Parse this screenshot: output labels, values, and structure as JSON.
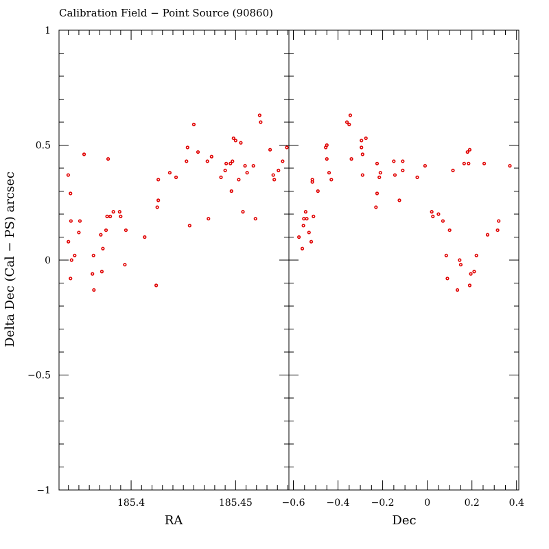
{
  "title": "Calibration Field − Point Source (90860)",
  "chart_data": [
    {
      "type": "scatter",
      "xlabel": "RA",
      "ylabel": "Delta Dec (Cal − PS) arcsec",
      "xlim": [
        185.3655,
        185.4755
      ],
      "ylim": [
        -1,
        1
      ],
      "xticks": [
        {
          "value": 185.4,
          "label": "185.4"
        },
        {
          "value": 185.45,
          "label": "185.45"
        }
      ],
      "yticks": [
        {
          "value": 1,
          "label": "1"
        },
        {
          "value": 0.5,
          "label": "0.5"
        },
        {
          "value": 0,
          "label": "0"
        },
        {
          "value": -0.5,
          "label": "−0.5"
        },
        {
          "value": -1,
          "label": "−1"
        }
      ],
      "points": [
        [
          185.3699,
          0.37
        ],
        [
          185.37,
          0.08
        ],
        [
          185.371,
          -0.08
        ],
        [
          185.371,
          0.29
        ],
        [
          185.3712,
          0.17
        ],
        [
          185.3715,
          0.0
        ],
        [
          185.373,
          0.02
        ],
        [
          185.375,
          0.12
        ],
        [
          185.3755,
          0.17
        ],
        [
          185.3775,
          0.46
        ],
        [
          185.3815,
          -0.06
        ],
        [
          185.382,
          0.02
        ],
        [
          185.3822,
          -0.13
        ],
        [
          185.3855,
          0.11
        ],
        [
          185.3865,
          0.05
        ],
        [
          185.386,
          -0.05
        ],
        [
          185.388,
          0.13
        ],
        [
          185.3885,
          0.19
        ],
        [
          185.389,
          0.44
        ],
        [
          185.39,
          0.19
        ],
        [
          185.3915,
          0.21
        ],
        [
          185.3945,
          0.21
        ],
        [
          185.395,
          0.19
        ],
        [
          185.397,
          -0.02
        ],
        [
          185.3975,
          0.13
        ],
        [
          185.4065,
          0.1
        ],
        [
          185.412,
          -0.11
        ],
        [
          185.4125,
          0.23
        ],
        [
          185.413,
          0.26
        ],
        [
          185.413,
          0.35
        ],
        [
          185.4185,
          0.38
        ],
        [
          185.4215,
          0.36
        ],
        [
          185.4265,
          0.43
        ],
        [
          185.427,
          0.49
        ],
        [
          185.428,
          0.15
        ],
        [
          185.43,
          0.59
        ],
        [
          185.432,
          0.47
        ],
        [
          185.4365,
          0.43
        ],
        [
          185.437,
          0.18
        ],
        [
          185.4385,
          0.45
        ],
        [
          185.443,
          0.36
        ],
        [
          185.445,
          0.39
        ],
        [
          185.4455,
          0.42
        ],
        [
          185.4475,
          0.42
        ],
        [
          185.448,
          0.3
        ],
        [
          185.4485,
          0.43
        ],
        [
          185.449,
          0.53
        ],
        [
          185.45,
          0.52
        ],
        [
          185.4515,
          0.35
        ],
        [
          185.4525,
          0.51
        ],
        [
          185.4545,
          0.41
        ],
        [
          185.4535,
          0.21
        ],
        [
          185.4555,
          0.38
        ],
        [
          185.4585,
          0.41
        ],
        [
          185.4595,
          0.18
        ],
        [
          185.4615,
          0.63
        ],
        [
          185.462,
          0.6
        ],
        [
          185.4665,
          0.48
        ],
        [
          185.468,
          0.37
        ],
        [
          185.4685,
          0.35
        ],
        [
          185.4705,
          0.39
        ],
        [
          185.4725,
          0.43
        ],
        [
          185.4745,
          0.49
        ]
      ]
    },
    {
      "type": "scatter",
      "xlabel": "Dec",
      "ylabel": "",
      "xlim": [
        -0.62,
        0.41
      ],
      "ylim": [
        -1,
        1
      ],
      "xticks": [
        {
          "value": -0.6,
          "label": "−0.6"
        },
        {
          "value": -0.4,
          "label": "−0.4"
        },
        {
          "value": -0.2,
          "label": "−0.2"
        },
        {
          "value": 0,
          "label": "0"
        },
        {
          "value": 0.2,
          "label": "0.2"
        },
        {
          "value": 0.4,
          "label": "0.4"
        }
      ],
      "points": [
        [
          -0.575,
          0.1
        ],
        [
          -0.56,
          0.05
        ],
        [
          -0.555,
          0.15
        ],
        [
          -0.553,
          0.18
        ],
        [
          -0.545,
          0.21
        ],
        [
          -0.54,
          0.18
        ],
        [
          -0.53,
          0.12
        ],
        [
          -0.52,
          0.08
        ],
        [
          -0.51,
          0.19
        ],
        [
          -0.515,
          0.35
        ],
        [
          -0.515,
          0.34
        ],
        [
          -0.49,
          0.3
        ],
        [
          -0.455,
          0.49
        ],
        [
          -0.45,
          0.5
        ],
        [
          -0.45,
          0.44
        ],
        [
          -0.44,
          0.38
        ],
        [
          -0.43,
          0.35
        ],
        [
          -0.36,
          0.6
        ],
        [
          -0.35,
          0.59
        ],
        [
          -0.345,
          0.63
        ],
        [
          -0.34,
          0.44
        ],
        [
          -0.295,
          0.52
        ],
        [
          -0.295,
          0.49
        ],
        [
          -0.29,
          0.46
        ],
        [
          -0.29,
          0.37
        ],
        [
          -0.275,
          0.53
        ],
        [
          -0.23,
          0.23
        ],
        [
          -0.225,
          0.29
        ],
        [
          -0.225,
          0.42
        ],
        [
          -0.215,
          0.36
        ],
        [
          -0.21,
          0.38
        ],
        [
          -0.15,
          0.43
        ],
        [
          -0.145,
          0.37
        ],
        [
          -0.125,
          0.26
        ],
        [
          -0.11,
          0.43
        ],
        [
          -0.11,
          0.39
        ],
        [
          -0.045,
          0.36
        ],
        [
          -0.01,
          0.41
        ],
        [
          0.02,
          0.21
        ],
        [
          0.025,
          0.19
        ],
        [
          0.05,
          0.2
        ],
        [
          0.07,
          0.17
        ],
        [
          0.085,
          0.02
        ],
        [
          0.09,
          -0.08
        ],
        [
          0.1,
          0.13
        ],
        [
          0.115,
          0.39
        ],
        [
          0.135,
          -0.13
        ],
        [
          0.145,
          0.0
        ],
        [
          0.15,
          -0.02
        ],
        [
          0.165,
          0.42
        ],
        [
          0.18,
          0.47
        ],
        [
          0.185,
          0.42
        ],
        [
          0.19,
          0.48
        ],
        [
          0.19,
          -0.11
        ],
        [
          0.195,
          -0.06
        ],
        [
          0.21,
          -0.05
        ],
        [
          0.22,
          0.02
        ],
        [
          0.255,
          0.42
        ],
        [
          0.27,
          0.11
        ],
        [
          0.315,
          0.13
        ],
        [
          0.32,
          0.17
        ],
        [
          0.37,
          0.41
        ]
      ]
    }
  ]
}
